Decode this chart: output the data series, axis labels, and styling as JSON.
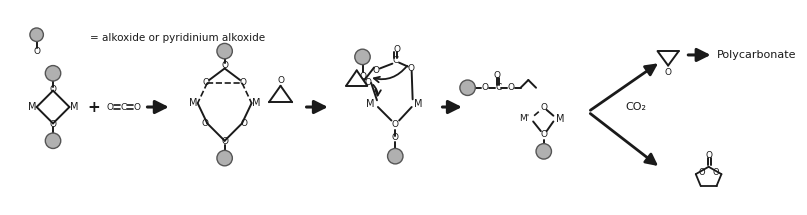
{
  "bg_color": "#ffffff",
  "text_color": "#1a1a1a",
  "line_color": "#1a1a1a",
  "ball_face": "#b0b0b0",
  "ball_edge": "#555555",
  "legend_text": "= alkoxide or pyridinium alkoxide",
  "co2_label": "CO₂",
  "polycarbonate_label": "Polycarbonate",
  "fig_width": 8.07,
  "fig_height": 2.15,
  "dpi": 100
}
